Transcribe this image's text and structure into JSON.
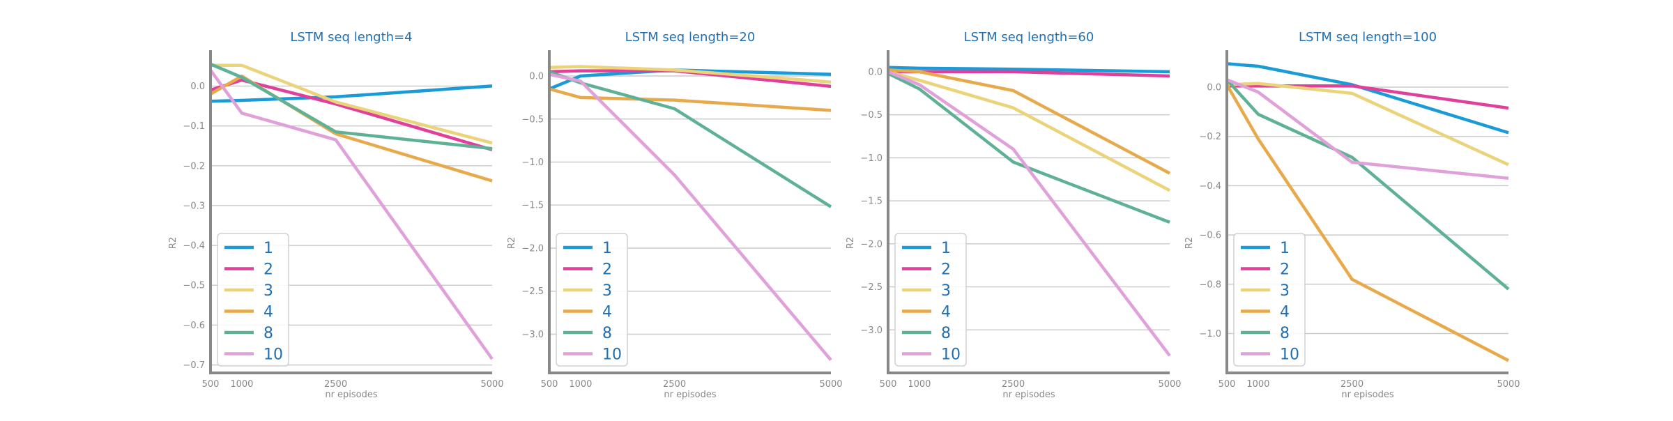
{
  "chart_data": [
    {
      "type": "line",
      "title": "LSTM seq length=4",
      "xlabel": "nr episodes",
      "ylabel": "R2",
      "x": [
        500,
        1000,
        2500,
        5000
      ],
      "xticks": [
        500,
        1000,
        2500,
        5000
      ],
      "xlim": [
        500,
        5000
      ],
      "ylim": [
        -0.72,
        0.09
      ],
      "yticks": [
        0.0,
        -0.1,
        -0.2,
        -0.3,
        -0.4,
        -0.5,
        -0.6,
        -0.7
      ],
      "ytick_labels": [
        "0.0",
        "−0.1",
        "−0.2",
        "−0.3",
        "−0.4",
        "−0.5",
        "−0.6",
        "−0.7"
      ],
      "grid": true,
      "legend": "bottom-left",
      "series": [
        {
          "name": "1",
          "values": [
            -0.038,
            -0.036,
            -0.027,
            0.0
          ]
        },
        {
          "name": "2",
          "values": [
            -0.01,
            0.015,
            -0.045,
            -0.16
          ]
        },
        {
          "name": "3",
          "values": [
            0.052,
            0.052,
            -0.04,
            -0.143
          ]
        },
        {
          "name": "4",
          "values": [
            -0.02,
            0.025,
            -0.12,
            -0.238
          ]
        },
        {
          "name": "8",
          "values": [
            0.055,
            0.022,
            -0.115,
            -0.157
          ]
        },
        {
          "name": "10",
          "values": [
            0.04,
            -0.068,
            -0.135,
            -0.685
          ]
        }
      ]
    },
    {
      "type": "line",
      "title": "LSTM seq length=20",
      "xlabel": "nr episodes",
      "ylabel": "R2",
      "x": [
        500,
        1000,
        2500,
        5000
      ],
      "xticks": [
        500,
        1000,
        2500,
        5000
      ],
      "xlim": [
        500,
        5000
      ],
      "ylim": [
        -3.45,
        0.3
      ],
      "yticks": [
        0.0,
        -0.5,
        -1.0,
        -1.5,
        -2.0,
        -2.5,
        -3.0
      ],
      "ytick_labels": [
        "0.0",
        "−0.5",
        "−1.0",
        "−1.5",
        "−2.0",
        "−2.5",
        "−3.0"
      ],
      "grid": true,
      "legend": "bottom-left",
      "series": [
        {
          "name": "1",
          "values": [
            -0.15,
            0.0,
            0.07,
            0.02
          ]
        },
        {
          "name": "2",
          "values": [
            0.05,
            0.06,
            0.06,
            -0.12
          ]
        },
        {
          "name": "3",
          "values": [
            0.1,
            0.11,
            0.07,
            -0.07
          ]
        },
        {
          "name": "4",
          "values": [
            -0.15,
            -0.25,
            -0.28,
            -0.4
          ]
        },
        {
          "name": "8",
          "values": [
            0.05,
            -0.08,
            -0.38,
            -1.52
          ]
        },
        {
          "name": "10",
          "values": [
            0.02,
            -0.06,
            -1.15,
            -3.3
          ]
        }
      ]
    },
    {
      "type": "line",
      "title": "LSTM seq length=60",
      "xlabel": "nr episodes",
      "ylabel": "R2",
      "x": [
        500,
        1000,
        2500,
        5000
      ],
      "xticks": [
        500,
        1000,
        2500,
        5000
      ],
      "xlim": [
        500,
        5000
      ],
      "ylim": [
        -3.5,
        0.25
      ],
      "yticks": [
        0.0,
        -0.5,
        -1.0,
        -1.5,
        -2.0,
        -2.5,
        -3.0
      ],
      "ytick_labels": [
        "0.0",
        "−0.5",
        "−1.0",
        "−1.5",
        "−2.0",
        "−2.5",
        "−3.0"
      ],
      "grid": true,
      "legend": "bottom-left",
      "series": [
        {
          "name": "1",
          "values": [
            0.05,
            0.04,
            0.03,
            0.0
          ]
        },
        {
          "name": "2",
          "values": [
            0.0,
            0.0,
            0.0,
            -0.05
          ]
        },
        {
          "name": "3",
          "values": [
            0.0,
            -0.1,
            -0.42,
            -1.38
          ]
        },
        {
          "name": "4",
          "values": [
            0.02,
            0.0,
            -0.22,
            -1.18
          ]
        },
        {
          "name": "8",
          "values": [
            -0.02,
            -0.2,
            -1.05,
            -1.75
          ]
        },
        {
          "name": "10",
          "values": [
            0.0,
            -0.15,
            -0.9,
            -3.3
          ]
        }
      ]
    },
    {
      "type": "line",
      "title": "LSTM seq length=100",
      "xlabel": "nr episodes",
      "ylabel": "R2",
      "x": [
        500,
        1000,
        2500,
        5000
      ],
      "xticks": [
        500,
        1000,
        2500,
        5000
      ],
      "xlim": [
        500,
        5000
      ],
      "ylim": [
        -1.16,
        0.15
      ],
      "yticks": [
        0.0,
        -0.2,
        -0.4,
        -0.6,
        -0.8,
        -1.0
      ],
      "ytick_labels": [
        "0.0",
        "−0.2",
        "−0.4",
        "−0.6",
        "−0.8",
        "−1.0"
      ],
      "grid": true,
      "legend": "bottom-left",
      "series": [
        {
          "name": "1",
          "values": [
            0.095,
            0.085,
            0.01,
            -0.185
          ]
        },
        {
          "name": "2",
          "values": [
            0.005,
            0.005,
            0.005,
            -0.085
          ]
        },
        {
          "name": "3",
          "values": [
            0.01,
            0.015,
            -0.025,
            -0.315
          ]
        },
        {
          "name": "4",
          "values": [
            0.01,
            -0.21,
            -0.78,
            -1.11
          ]
        },
        {
          "name": "8",
          "values": [
            0.03,
            -0.11,
            -0.285,
            -0.82
          ]
        },
        {
          "name": "10",
          "values": [
            0.03,
            -0.02,
            -0.305,
            -0.37
          ]
        }
      ]
    }
  ],
  "series_colors": [
    "#1a9bd7",
    "#e0409a",
    "#ebd37a",
    "#e8a94a",
    "#5fb196",
    "#e0a0d9"
  ]
}
